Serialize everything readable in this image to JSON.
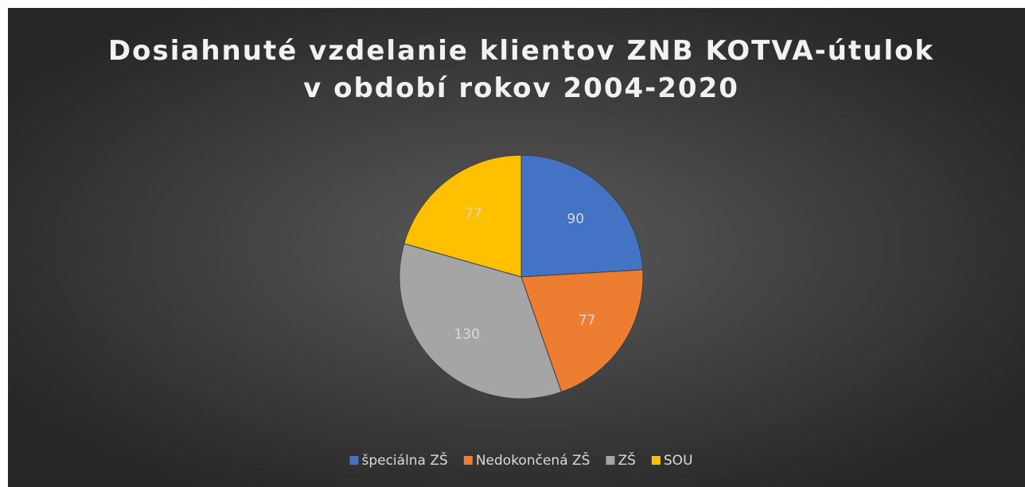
{
  "chart_data": {
    "type": "pie",
    "title": [
      "Dosiahnuté vzdelanie klientov ZNB KOTVA-útulok",
      "v období rokov 2004-2020"
    ],
    "categories": [
      "špeciálna ZŠ",
      "Nedokončená ZŠ",
      "ZŠ",
      "SOU"
    ],
    "values": [
      90,
      77,
      130,
      77
    ],
    "colors": [
      "#4472c4",
      "#ed7d31",
      "#a5a5a5",
      "#ffc000"
    ],
    "legend": "bottom"
  }
}
